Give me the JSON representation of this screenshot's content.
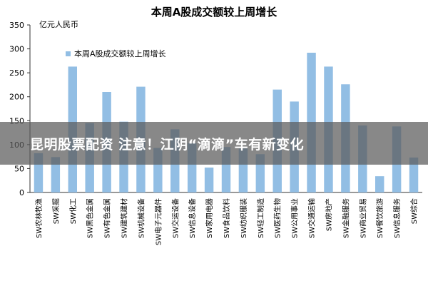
{
  "overlay": {
    "headline": "昆明股票配资 注意！江阴“滴滴”车有新变化"
  },
  "chart_data": {
    "type": "bar",
    "title": "本周A股成交额较上周增长",
    "ylabel": "亿元人民币",
    "xlabel": "",
    "ylim": [
      0,
      350
    ],
    "yticks": [
      0,
      50,
      100,
      150,
      200,
      250,
      300,
      350
    ],
    "grid": false,
    "legend_position": "top-left",
    "bar_color": "#92BEE4",
    "series": [
      {
        "name": "本周A股成交额较上周增长",
        "values": [
          82,
          74,
          263,
          145,
          210,
          148,
          221,
          93,
          132,
          103,
          52,
          95,
          92,
          80,
          215,
          190,
          292,
          263,
          226,
          140,
          34,
          138,
          73
        ]
      }
    ],
    "categories": [
      "SW农林牧渔",
      "SW采掘",
      "SW化工",
      "SW黑色金属",
      "SW有色金属",
      "SW建筑建材",
      "SW机械设备",
      "SW电子元器件",
      "SW交运设备",
      "SW信息设备",
      "SW家用电器",
      "SW食品饮料",
      "SW纺织服装",
      "SW轻工制造",
      "SW医药生物",
      "SW公用事业",
      "SW交通运输",
      "SW房地产",
      "SW金融服务",
      "SW商业贸易",
      "SW餐饮旅游",
      "SW信息服务",
      "SW综合"
    ]
  }
}
